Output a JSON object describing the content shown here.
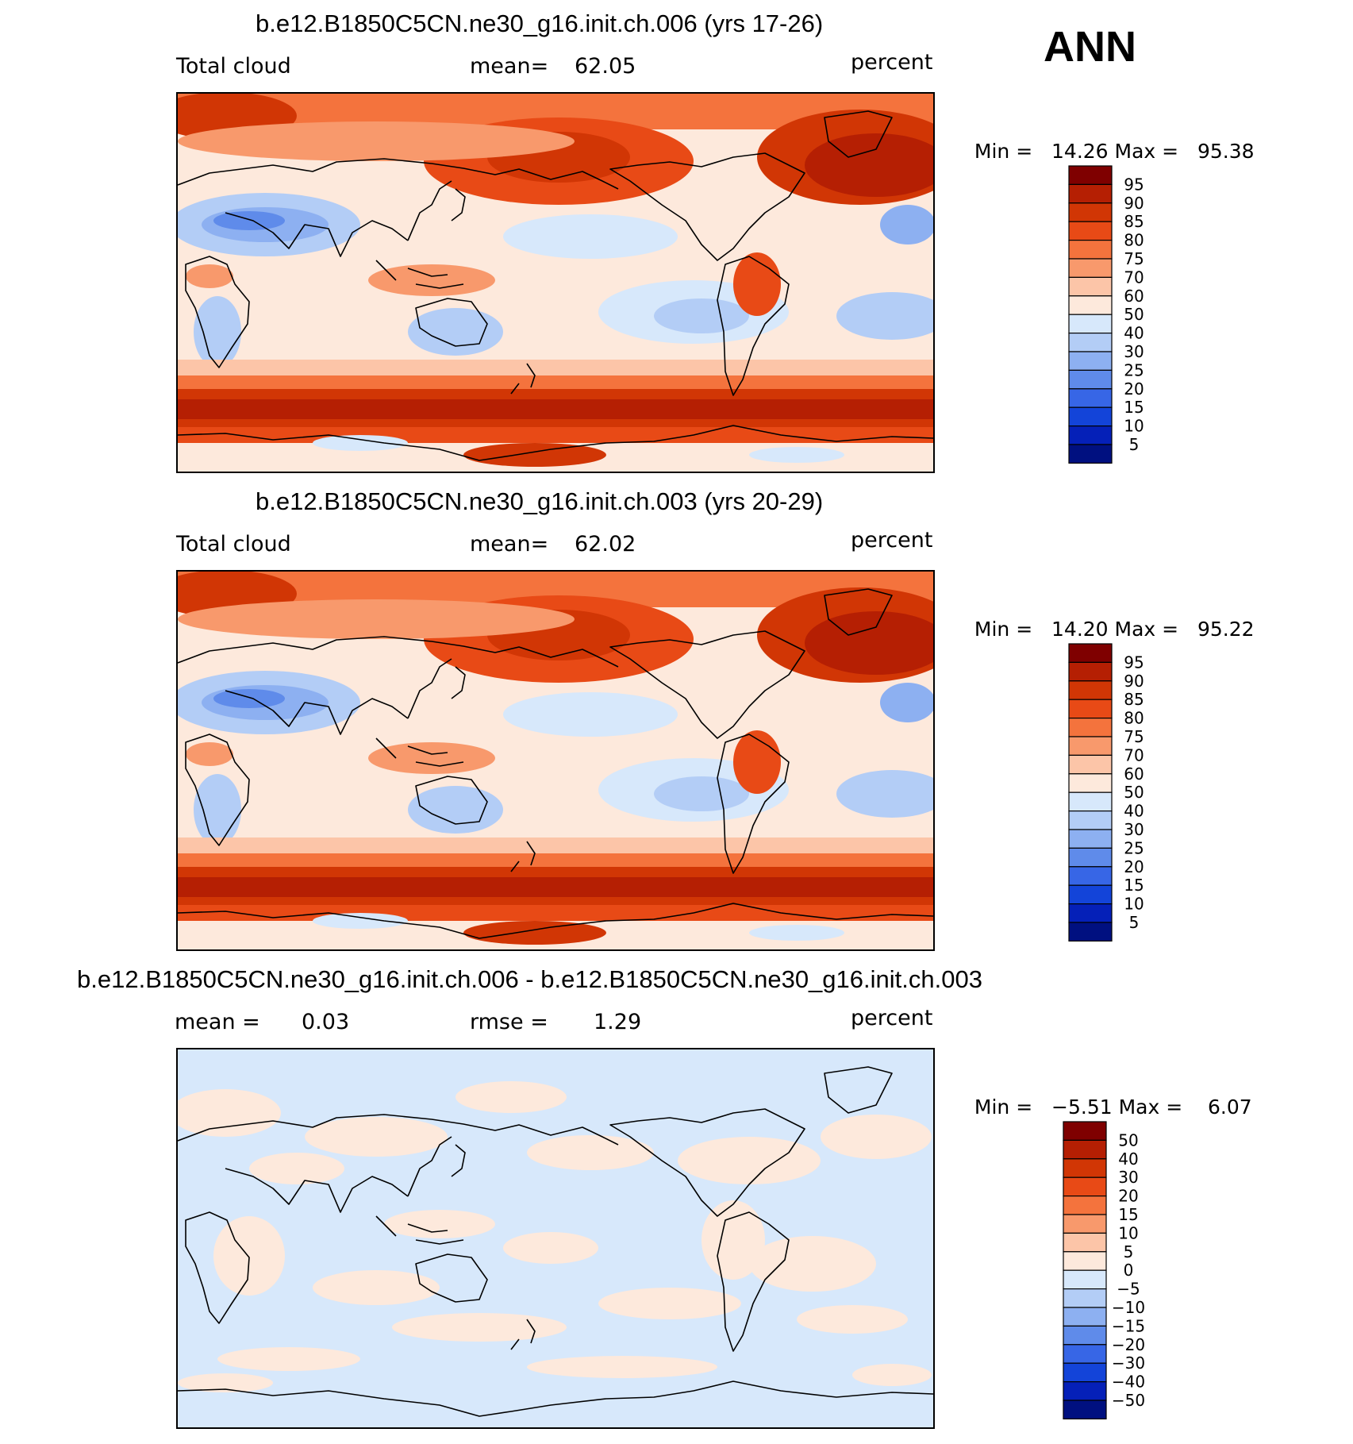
{
  "ann_label": "ANN",
  "unit": "percent",
  "panels": [
    {
      "title": "b.e12.B1850C5CN.ne30_g16.init.ch.006 (yrs 17-26)",
      "field": "Total cloud",
      "stat_label": "mean=",
      "stat_value": "62.05",
      "unit": "percent",
      "min_label": "Min =",
      "min_value": "14.26",
      "max_label": "Max =",
      "max_value": "95.38",
      "colorbar": [
        "95",
        "90",
        "85",
        "80",
        "75",
        "70",
        "60",
        "50",
        "40",
        "30",
        "25",
        "20",
        "15",
        "10",
        "5"
      ]
    },
    {
      "title": "b.e12.B1850C5CN.ne30_g16.init.ch.003 (yrs 20-29)",
      "field": "Total cloud",
      "stat_label": "mean=",
      "stat_value": "62.02",
      "unit": "percent",
      "min_label": "Min =",
      "min_value": "14.20",
      "max_label": "Max =",
      "max_value": "95.22",
      "colorbar": [
        "95",
        "90",
        "85",
        "80",
        "75",
        "70",
        "60",
        "50",
        "40",
        "30",
        "25",
        "20",
        "15",
        "10",
        "5"
      ]
    },
    {
      "title": "b.e12.B1850C5CN.ne30_g16.init.ch.006 - b.e12.B1850C5CN.ne30_g16.init.ch.003",
      "mean_label": "mean =",
      "mean_value": "0.03",
      "stat_label": "rmse =",
      "stat_value": "1.29",
      "unit": "percent",
      "min_label": "Min =",
      "min_value": "−5.51",
      "max_label": "Max =",
      "max_value": "6.07",
      "colorbar": [
        "50",
        "40",
        "30",
        "20",
        "15",
        "10",
        "5",
        "0",
        "−5",
        "−10",
        "−15",
        "−20",
        "−30",
        "−40",
        "−50"
      ]
    }
  ],
  "colors": {
    "colorbar": [
      "#7f0000",
      "#b51f03",
      "#d13605",
      "#e84a16",
      "#f4733d",
      "#f8996c",
      "#fcc5a8",
      "#fde9dc",
      "#d7e8fb",
      "#b3cdf6",
      "#8db0f1",
      "#5f8bea",
      "#3766e6",
      "#1344d9",
      "#0520b8",
      "#001080"
    ],
    "ocean_base": "#fde9dc",
    "coast": "#000000"
  }
}
